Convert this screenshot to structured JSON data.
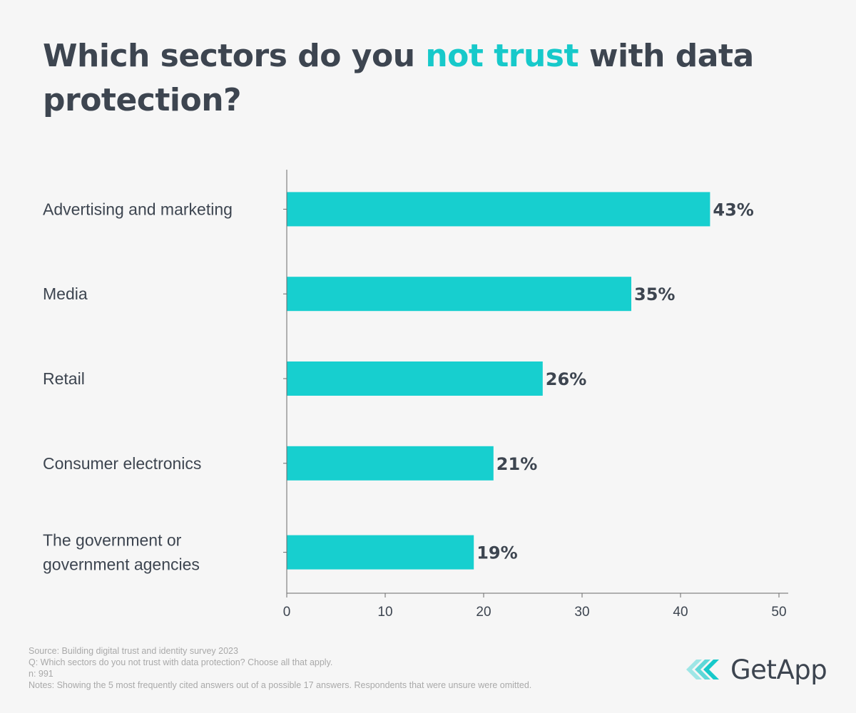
{
  "title": {
    "prefix": "Which sectors do you ",
    "highlight": "not trust",
    "suffix": " with data protection?"
  },
  "colors": {
    "bar": "#17cfcf",
    "highlight": "#17c9ca",
    "text": "#3d4550",
    "axis": "#6b6b6b",
    "footer": "#a9a9a9",
    "background": "#f6f6f6"
  },
  "chart_data": {
    "type": "bar",
    "orientation": "horizontal",
    "categories": [
      [
        "Advertising and marketing"
      ],
      [
        "Media"
      ],
      [
        "Retail"
      ],
      [
        "Consumer electronics"
      ],
      [
        "The government or",
        "government agencies"
      ]
    ],
    "values": [
      43,
      35,
      26,
      21,
      19
    ],
    "value_labels": [
      "43%",
      "35%",
      "26%",
      "21%",
      "19%"
    ],
    "xlim": [
      0,
      50
    ],
    "xticks": [
      0,
      10,
      20,
      30,
      40,
      50
    ],
    "grid": false,
    "legend": "none"
  },
  "footer": {
    "source": "Source: Building digital trust and identity survey 2023",
    "question": "Q: Which sectors do you not trust with data protection? Choose all that apply.",
    "n": "n: 991",
    "notes": "Notes: Showing the 5 most frequently cited answers out of a possible 17 answers. Respondents that were unsure were omitted."
  },
  "logo": {
    "text": "GetApp",
    "icon": "getapp-chevrons-icon"
  }
}
